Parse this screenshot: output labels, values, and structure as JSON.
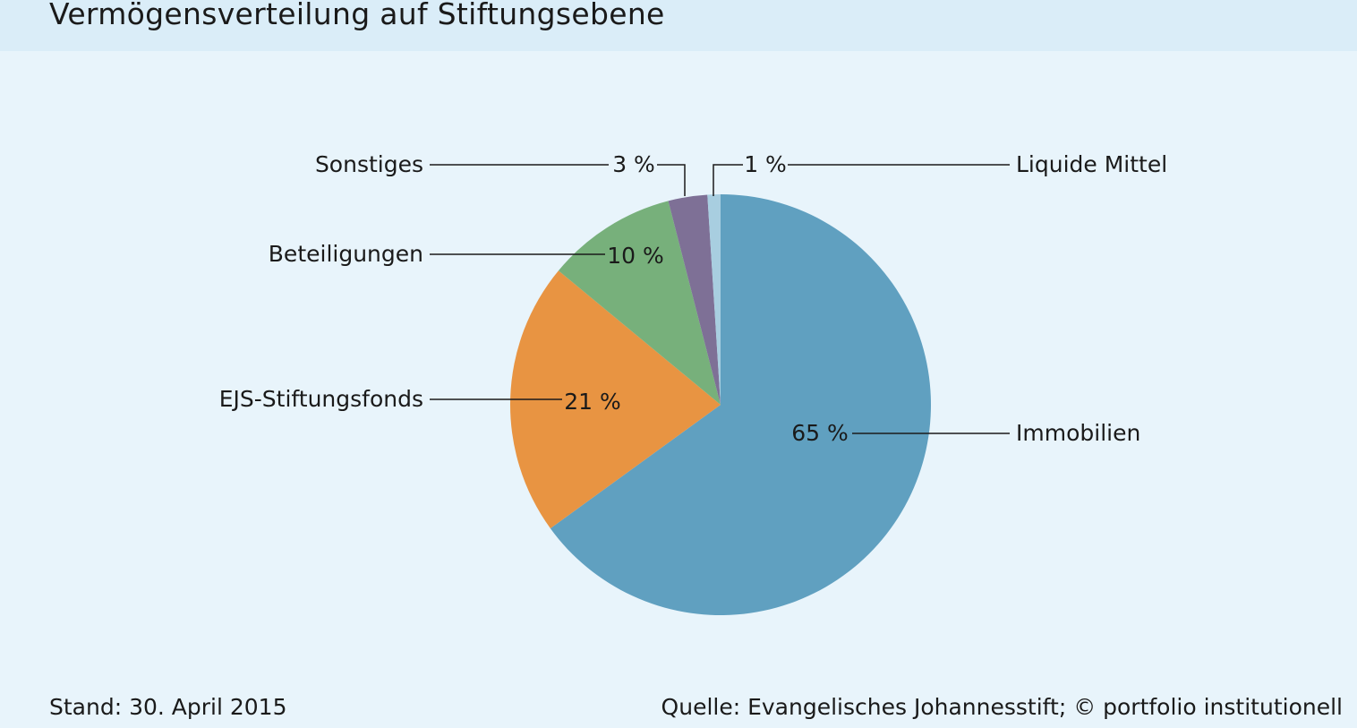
{
  "title": "Vermögensverteilung auf Stiftungsebene",
  "footer": {
    "date": "Stand: 30. April 2015",
    "source": "Quelle: Evangelisches Johannesstift; © portfolio institutionell"
  },
  "chart_data": {
    "type": "pie",
    "start": "12 o'clock, clockwise",
    "slices": [
      {
        "label": "Immobilien",
        "value": 65,
        "value_label": "65 %",
        "color": "#60a0c0"
      },
      {
        "label": "EJS-Stiftungsfonds",
        "value": 21,
        "value_label": "21 %",
        "color": "#e89442"
      },
      {
        "label": "Beteiligungen",
        "value": 10,
        "value_label": "10 %",
        "color": "#77b07b"
      },
      {
        "label": "Sonstiges",
        "value": 3,
        "value_label": "3 %",
        "color": "#7e7096"
      },
      {
        "label": "Liquide Mittel",
        "value": 1,
        "value_label": "1 %",
        "color": "#a8cee0"
      }
    ]
  }
}
